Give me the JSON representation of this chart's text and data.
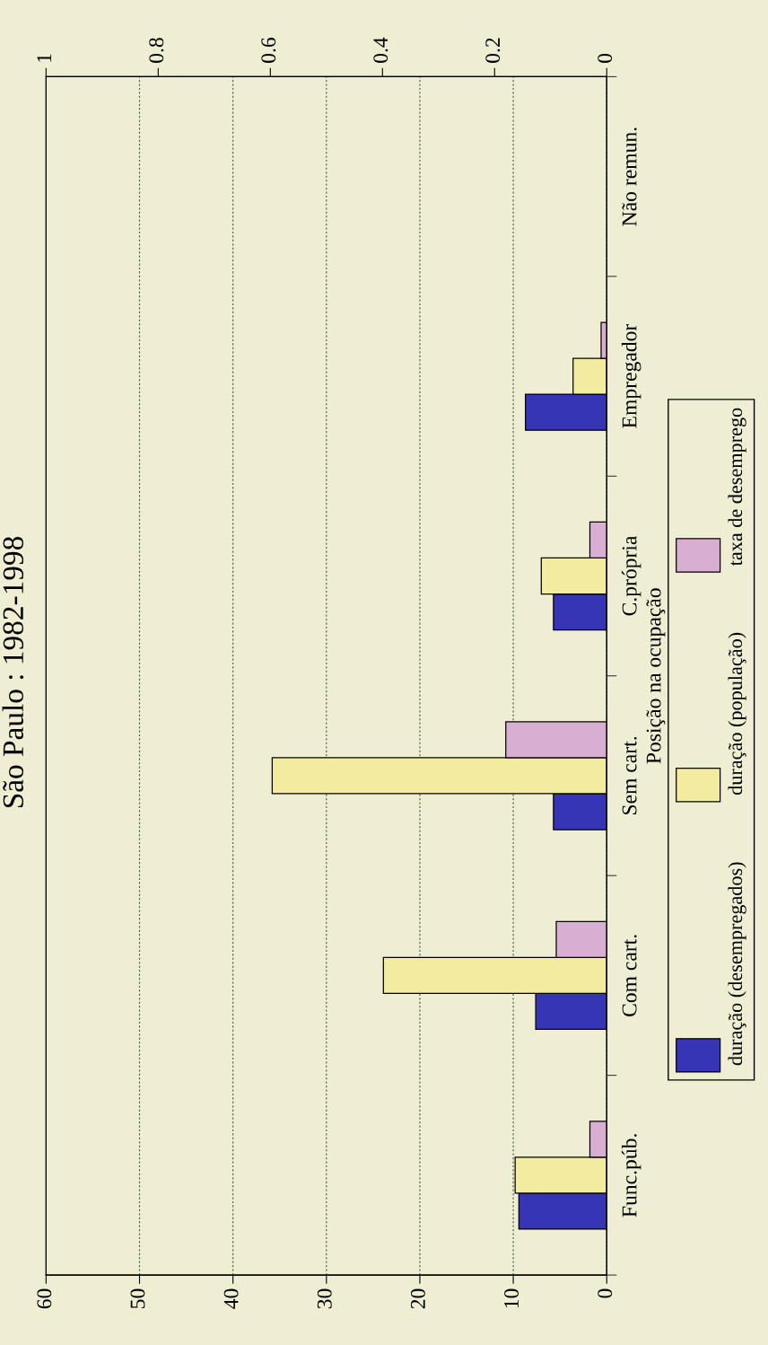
{
  "chart_data": {
    "type": "bar",
    "orientation": "horizontal",
    "title": "São Paulo : 1982-1998",
    "ylabel": "Posição na ocupação",
    "categories": [
      "Não remun.",
      "Empregador",
      "C.própria",
      "Sem cart.",
      "Com cart.",
      "Func.púb."
    ],
    "series": [
      {
        "name": "duração (desempregados)",
        "color": "#3535b5",
        "values": [
          null,
          8.7,
          5.7,
          5.7,
          7.6,
          9.4
        ]
      },
      {
        "name": "duração (população)",
        "color": "#f3eba0",
        "values": [
          null,
          3.6,
          7.0,
          35.8,
          23.9,
          9.8
        ]
      },
      {
        "name": "taxa de desemprego",
        "color": "#d8aed2",
        "axis": "x2",
        "values": [
          null,
          0.01,
          0.03,
          0.18,
          0.09,
          0.03
        ]
      }
    ],
    "xlim": [
      60,
      0
    ],
    "xticks": [
      60,
      50,
      40,
      30,
      20,
      10,
      0
    ],
    "x2lim": [
      1,
      0
    ],
    "x2ticks": [
      1,
      0.8,
      0.6,
      0.4,
      0.2,
      0
    ],
    "grid": "x",
    "legend": "right"
  }
}
